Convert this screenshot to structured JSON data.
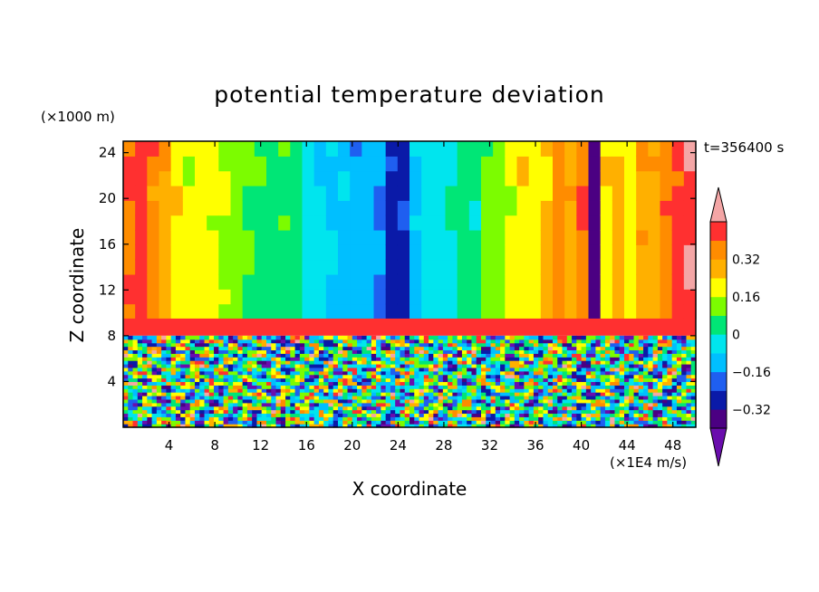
{
  "chart_data": {
    "type": "heatmap",
    "title": "potential temperature deviation",
    "xlabel": "X coordinate",
    "ylabel": "Z coordinate",
    "x_unit": "(×1E4 m/s)",
    "y_unit": "(×1000 m)",
    "time_label": "t=356400 s",
    "xlim": [
      0,
      50
    ],
    "ylim": [
      0,
      25
    ],
    "x_ticks": [
      4,
      8,
      12,
      16,
      20,
      24,
      28,
      32,
      36,
      40,
      44,
      48
    ],
    "y_ticks": [
      4,
      8,
      12,
      16,
      20,
      24
    ],
    "colorbar": {
      "levels": [
        {
          "max": -0.4,
          "color": "#6a0dad"
        },
        {
          "max": -0.32,
          "color": "#4b0082"
        },
        {
          "max": -0.24,
          "color": "#0a1aa8"
        },
        {
          "max": -0.16,
          "color": "#1f5ff0"
        },
        {
          "max": -0.08,
          "color": "#00bfff"
        },
        {
          "max": 0.0,
          "color": "#00e5ee"
        },
        {
          "max": 0.08,
          "color": "#00e676"
        },
        {
          "max": 0.16,
          "color": "#7cfc00"
        },
        {
          "max": 0.24,
          "color": "#ffff00"
        },
        {
          "max": 0.32,
          "color": "#ffb000"
        },
        {
          "max": 0.4,
          "color": "#ff8c00"
        },
        {
          "max": 0.48,
          "color": "#ff3030"
        },
        {
          "max": 9.99,
          "color": "#f4a6a6"
        }
      ],
      "tick_labels": [
        "0.32",
        "0.16",
        "0",
        "−0.16",
        "−0.32"
      ],
      "tick_values": [
        0.32,
        0.16,
        0,
        -0.16,
        -0.32
      ]
    },
    "upper_band_values": [
      0.4,
      0.42,
      0.36,
      0.3,
      0.22,
      0.18,
      0.2,
      0.18,
      0.16,
      0.12,
      0.08,
      0.06,
      0.04,
      0.06,
      0.02,
      -0.03,
      -0.06,
      -0.08,
      -0.1,
      -0.14,
      -0.12,
      -0.16,
      -0.28,
      -0.26,
      -0.1,
      -0.06,
      -0.04,
      0.0,
      0.06,
      0.02,
      0.12,
      0.1,
      0.18,
      0.22,
      0.2,
      0.26,
      0.34,
      0.3,
      0.4,
      -0.36,
      0.22,
      0.26,
      0.2,
      0.3,
      0.28,
      0.38,
      0.44,
      0.48
    ],
    "inversion_layer": {
      "z_min": 8,
      "z_max": 9.5,
      "value_min": 0.48
    }
  }
}
